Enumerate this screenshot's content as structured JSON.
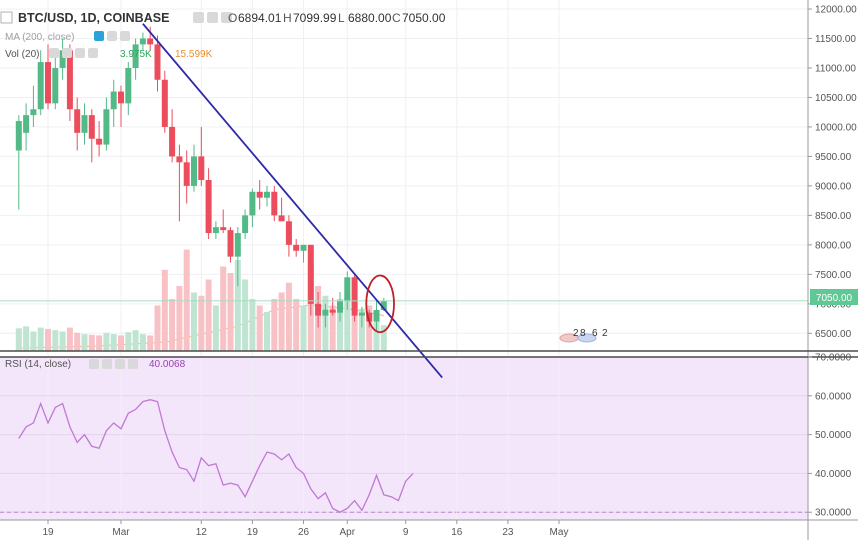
{
  "header": {
    "symbol": "BTC/USD, 1D, COINBASE",
    "o_label": "O",
    "o_value": "6894.01",
    "h_label": "H",
    "h_value": "7099.99",
    "l_label": "L",
    "l_value": "6880.00",
    "c_label": "C",
    "c_value": "7050.00"
  },
  "ma_label": "MA (200, close)",
  "vol_label": "Vol (20)",
  "vol_value1": "3.975K",
  "vol_value2": "15.599K",
  "rsi_label": "RSI (14, close)",
  "rsi_value": "40.0068",
  "price_tag": "7050.00",
  "event_digits": [
    "2",
    "8",
    "6",
    "2"
  ],
  "colors": {
    "up": "#53b987",
    "down": "#eb4d5c",
    "vol_up": "#bfe5d2",
    "vol_down": "#f7c1c6",
    "trendline": "#2f2aa8",
    "circle": "#c0202a",
    "rsi_bg": "#f3e6fb",
    "rsi_line": "#c178d4",
    "ma_line": "#f2c08a",
    "price_tag_bg": "#5fc895"
  },
  "chart_data": [
    {
      "type": "candlestick",
      "title": "BTC/USD, 1D, COINBASE",
      "ylim": [
        6200,
        12000
      ],
      "y_ticks": [
        "12000.00",
        "11500.00",
        "11000.00",
        "10500.00",
        "10000.00",
        "9500.00",
        "9000.00",
        "8500.00",
        "8000.00",
        "7500.00",
        "7000.00",
        "6500.00"
      ],
      "x_ticks": [
        {
          "label": "19",
          "day": 0
        },
        {
          "label": "Mar",
          "day": 10
        },
        {
          "label": "12",
          "day": 21
        },
        {
          "label": "19",
          "day": 28
        },
        {
          "label": "26",
          "day": 35
        },
        {
          "label": "Apr",
          "day": 41
        },
        {
          "label": "9",
          "day": 49
        },
        {
          "label": "16",
          "day": 56
        },
        {
          "label": "23",
          "day": 63
        },
        {
          "label": "May",
          "day": 70
        }
      ],
      "candles": [
        {
          "day": -4,
          "o": 9600,
          "h": 10200,
          "l": 8600,
          "c": 10100
        },
        {
          "day": -3,
          "o": 9900,
          "h": 10400,
          "l": 9600,
          "c": 10200
        },
        {
          "day": -2,
          "o": 10200,
          "h": 10700,
          "l": 10000,
          "c": 10300
        },
        {
          "day": -1,
          "o": 10300,
          "h": 11300,
          "l": 10200,
          "c": 11100
        },
        {
          "day": 0,
          "o": 11100,
          "h": 11400,
          "l": 10300,
          "c": 10400
        },
        {
          "day": 1,
          "o": 10400,
          "h": 11200,
          "l": 10300,
          "c": 11000
        },
        {
          "day": 2,
          "o": 11000,
          "h": 11500,
          "l": 10800,
          "c": 11300
        },
        {
          "day": 3,
          "o": 11300,
          "h": 11400,
          "l": 10100,
          "c": 10300
        },
        {
          "day": 4,
          "o": 10300,
          "h": 10500,
          "l": 9600,
          "c": 9900
        },
        {
          "day": 5,
          "o": 9900,
          "h": 10400,
          "l": 9700,
          "c": 10200
        },
        {
          "day": 6,
          "o": 10200,
          "h": 10300,
          "l": 9400,
          "c": 9800
        },
        {
          "day": 7,
          "o": 9800,
          "h": 10100,
          "l": 9500,
          "c": 9700
        },
        {
          "day": 8,
          "o": 9700,
          "h": 10500,
          "l": 9600,
          "c": 10300
        },
        {
          "day": 9,
          "o": 10300,
          "h": 10800,
          "l": 10000,
          "c": 10600
        },
        {
          "day": 10,
          "o": 10600,
          "h": 10700,
          "l": 10000,
          "c": 10400
        },
        {
          "day": 11,
          "o": 10400,
          "h": 11100,
          "l": 10200,
          "c": 11000
        },
        {
          "day": 12,
          "o": 11000,
          "h": 11500,
          "l": 10800,
          "c": 11400
        },
        {
          "day": 13,
          "o": 11400,
          "h": 11600,
          "l": 11300,
          "c": 11500
        },
        {
          "day": 14,
          "o": 11500,
          "h": 11700,
          "l": 11300,
          "c": 11400
        },
        {
          "day": 15,
          "o": 11400,
          "h": 11550,
          "l": 10600,
          "c": 10800
        },
        {
          "day": 16,
          "o": 10800,
          "h": 10950,
          "l": 9900,
          "c": 10000
        },
        {
          "day": 17,
          "o": 10000,
          "h": 10300,
          "l": 9400,
          "c": 9500
        },
        {
          "day": 18,
          "o": 9500,
          "h": 9700,
          "l": 8400,
          "c": 9400
        },
        {
          "day": 19,
          "o": 9400,
          "h": 9600,
          "l": 8700,
          "c": 9000
        },
        {
          "day": 20,
          "o": 9000,
          "h": 9700,
          "l": 8900,
          "c": 9500
        },
        {
          "day": 21,
          "o": 9500,
          "h": 10000,
          "l": 9000,
          "c": 9100
        },
        {
          "day": 22,
          "o": 9100,
          "h": 9300,
          "l": 8100,
          "c": 8200
        },
        {
          "day": 23,
          "o": 8200,
          "h": 8400,
          "l": 8100,
          "c": 8300
        },
        {
          "day": 24,
          "o": 8300,
          "h": 8600,
          "l": 8200,
          "c": 8250
        },
        {
          "day": 25,
          "o": 8250,
          "h": 8300,
          "l": 7700,
          "c": 7800
        },
        {
          "day": 26,
          "o": 7800,
          "h": 8300,
          "l": 7300,
          "c": 8200
        },
        {
          "day": 27,
          "o": 8200,
          "h": 8600,
          "l": 8100,
          "c": 8500
        },
        {
          "day": 28,
          "o": 8500,
          "h": 8950,
          "l": 8300,
          "c": 8900
        },
        {
          "day": 29,
          "o": 8900,
          "h": 9100,
          "l": 8600,
          "c": 8800
        },
        {
          "day": 30,
          "o": 8800,
          "h": 9000,
          "l": 8650,
          "c": 8900
        },
        {
          "day": 31,
          "o": 8900,
          "h": 9000,
          "l": 8400,
          "c": 8500
        },
        {
          "day": 32,
          "o": 8500,
          "h": 8800,
          "l": 8400,
          "c": 8400
        },
        {
          "day": 33,
          "o": 8400,
          "h": 8500,
          "l": 7800,
          "c": 8000
        },
        {
          "day": 34,
          "o": 8000,
          "h": 8100,
          "l": 7800,
          "c": 7900
        },
        {
          "day": 35,
          "o": 7900,
          "h": 8000,
          "l": 7700,
          "c": 8000
        },
        {
          "day": 36,
          "o": 8000,
          "h": 8000,
          "l": 6800,
          "c": 7000
        },
        {
          "day": 37,
          "o": 7000,
          "h": 7200,
          "l": 6600,
          "c": 6800
        },
        {
          "day": 38,
          "o": 6800,
          "h": 7000,
          "l": 6600,
          "c": 6900
        },
        {
          "day": 39,
          "o": 6900,
          "h": 7100,
          "l": 6800,
          "c": 6850
        },
        {
          "day": 40,
          "o": 6850,
          "h": 7200,
          "l": 6700,
          "c": 7050
        },
        {
          "day": 41,
          "o": 7050,
          "h": 7550,
          "l": 6900,
          "c": 7450
        },
        {
          "day": 42,
          "o": 7450,
          "h": 7500,
          "l": 6700,
          "c": 6800
        },
        {
          "day": 43,
          "o": 6800,
          "h": 6950,
          "l": 6600,
          "c": 6850
        },
        {
          "day": 44,
          "o": 6850,
          "h": 6900,
          "l": 6600,
          "c": 6700
        },
        {
          "day": 45,
          "o": 6700,
          "h": 7050,
          "l": 6550,
          "c": 6894.01
        },
        {
          "day": 46,
          "o": 6894.01,
          "h": 7099.99,
          "l": 6880,
          "c": 7050
        }
      ],
      "volume": [
        {
          "day": -4,
          "v": 3.5,
          "up": true
        },
        {
          "day": -3,
          "v": 3.8,
          "up": true
        },
        {
          "day": -2,
          "v": 3.0,
          "up": true
        },
        {
          "day": -1,
          "v": 3.6,
          "up": true
        },
        {
          "day": 0,
          "v": 3.4,
          "up": false
        },
        {
          "day": 1,
          "v": 3.2,
          "up": true
        },
        {
          "day": 2,
          "v": 3.0,
          "up": true
        },
        {
          "day": 3,
          "v": 3.6,
          "up": false
        },
        {
          "day": 4,
          "v": 2.8,
          "up": false
        },
        {
          "day": 5,
          "v": 2.6,
          "up": true
        },
        {
          "day": 6,
          "v": 2.5,
          "up": false
        },
        {
          "day": 7,
          "v": 2.4,
          "up": false
        },
        {
          "day": 8,
          "v": 2.8,
          "up": true
        },
        {
          "day": 9,
          "v": 2.6,
          "up": true
        },
        {
          "day": 10,
          "v": 2.4,
          "up": false
        },
        {
          "day": 11,
          "v": 2.9,
          "up": true
        },
        {
          "day": 12,
          "v": 3.2,
          "up": true
        },
        {
          "day": 13,
          "v": 2.6,
          "up": true
        },
        {
          "day": 14,
          "v": 2.4,
          "up": false
        },
        {
          "day": 15,
          "v": 7.0,
          "up": false
        },
        {
          "day": 16,
          "v": 12.5,
          "up": false
        },
        {
          "day": 17,
          "v": 8.0,
          "up": false
        },
        {
          "day": 18,
          "v": 10.0,
          "up": false
        },
        {
          "day": 19,
          "v": 15.599,
          "up": false
        },
        {
          "day": 20,
          "v": 9.0,
          "up": true
        },
        {
          "day": 21,
          "v": 8.5,
          "up": false
        },
        {
          "day": 22,
          "v": 11.0,
          "up": false
        },
        {
          "day": 23,
          "v": 7.0,
          "up": true
        },
        {
          "day": 24,
          "v": 13.0,
          "up": false
        },
        {
          "day": 25,
          "v": 12.0,
          "up": false
        },
        {
          "day": 26,
          "v": 14.0,
          "up": true
        },
        {
          "day": 27,
          "v": 11.0,
          "up": true
        },
        {
          "day": 28,
          "v": 8.0,
          "up": true
        },
        {
          "day": 29,
          "v": 7.0,
          "up": false
        },
        {
          "day": 30,
          "v": 6.0,
          "up": true
        },
        {
          "day": 31,
          "v": 8.0,
          "up": false
        },
        {
          "day": 32,
          "v": 9.0,
          "up": false
        },
        {
          "day": 33,
          "v": 10.5,
          "up": false
        },
        {
          "day": 34,
          "v": 8.0,
          "up": false
        },
        {
          "day": 35,
          "v": 7.0,
          "up": true
        },
        {
          "day": 36,
          "v": 13.5,
          "up": false
        },
        {
          "day": 37,
          "v": 10.0,
          "up": false
        },
        {
          "day": 38,
          "v": 8.5,
          "up": true
        },
        {
          "day": 39,
          "v": 7.0,
          "up": false
        },
        {
          "day": 40,
          "v": 8.0,
          "up": true
        },
        {
          "day": 41,
          "v": 9.0,
          "up": true
        },
        {
          "day": 42,
          "v": 8.0,
          "up": false
        },
        {
          "day": 43,
          "v": 6.5,
          "up": true
        },
        {
          "day": 44,
          "v": 7.0,
          "up": false
        },
        {
          "day": 45,
          "v": 5.0,
          "up": true
        },
        {
          "day": 46,
          "v": 3.975,
          "up": true
        }
      ],
      "vol_max": 20,
      "ma_200": [
        {
          "day": -4,
          "v": 6250
        },
        {
          "day": 6,
          "v": 6280
        },
        {
          "day": 16,
          "v": 6350
        },
        {
          "day": 26,
          "v": 6620
        },
        {
          "day": 31,
          "v": 6900
        },
        {
          "day": 36,
          "v": 6980
        },
        {
          "day": 41,
          "v": 6920
        },
        {
          "day": 46,
          "v": 6800
        }
      ],
      "trendline": {
        "start": {
          "day": 13,
          "v": 11750
        },
        "end": {
          "day": 54,
          "v": 5750
        }
      },
      "highlight_circle": {
        "day": 45.5,
        "v": 7000,
        "r_days": 1.9,
        "r_value": 480
      }
    },
    {
      "type": "line",
      "title": "RSI (14, close)",
      "ylim": [
        28,
        70
      ],
      "y_ticks": [
        "70.0000",
        "60.0000",
        "50.0000",
        "40.0000",
        "30.0000"
      ],
      "bands": [
        30,
        70
      ],
      "points": [
        {
          "day": -4,
          "v": 49
        },
        {
          "day": -3,
          "v": 52
        },
        {
          "day": -2,
          "v": 53
        },
        {
          "day": -1,
          "v": 58
        },
        {
          "day": 0,
          "v": 53
        },
        {
          "day": 1,
          "v": 57
        },
        {
          "day": 2,
          "v": 58
        },
        {
          "day": 3,
          "v": 52
        },
        {
          "day": 4,
          "v": 48
        },
        {
          "day": 5,
          "v": 50
        },
        {
          "day": 6,
          "v": 47
        },
        {
          "day": 7,
          "v": 46.5
        },
        {
          "day": 8,
          "v": 51
        },
        {
          "day": 9,
          "v": 53
        },
        {
          "day": 10,
          "v": 51.5
        },
        {
          "day": 11,
          "v": 55.5
        },
        {
          "day": 12,
          "v": 56.5
        },
        {
          "day": 13,
          "v": 58.5
        },
        {
          "day": 14,
          "v": 59
        },
        {
          "day": 15,
          "v": 58.5
        },
        {
          "day": 16,
          "v": 51
        },
        {
          "day": 17,
          "v": 45.5
        },
        {
          "day": 18,
          "v": 41.5
        },
        {
          "day": 19,
          "v": 41
        },
        {
          "day": 20,
          "v": 38
        },
        {
          "day": 21,
          "v": 44
        },
        {
          "day": 22,
          "v": 42
        },
        {
          "day": 23,
          "v": 42.5
        },
        {
          "day": 24,
          "v": 37
        },
        {
          "day": 25,
          "v": 37.5
        },
        {
          "day": 26,
          "v": 37
        },
        {
          "day": 27,
          "v": 34
        },
        {
          "day": 28,
          "v": 38
        },
        {
          "day": 29,
          "v": 42
        },
        {
          "day": 30,
          "v": 45.5
        },
        {
          "day": 31,
          "v": 45
        },
        {
          "day": 32,
          "v": 43.5
        },
        {
          "day": 33,
          "v": 45
        },
        {
          "day": 34,
          "v": 41.5
        },
        {
          "day": 35,
          "v": 40
        },
        {
          "day": 36,
          "v": 36
        },
        {
          "day": 37,
          "v": 33.5
        },
        {
          "day": 38,
          "v": 35
        },
        {
          "day": 39,
          "v": 31
        },
        {
          "day": 40,
          "v": 30
        },
        {
          "day": 41,
          "v": 31
        },
        {
          "day": 42,
          "v": 33
        },
        {
          "day": 43,
          "v": 30.5
        },
        {
          "day": 44,
          "v": 34.5
        },
        {
          "day": 45,
          "v": 39.5
        },
        {
          "day": 46,
          "v": 34.5
        },
        {
          "day": 47,
          "v": 34
        },
        {
          "day": 48,
          "v": 33
        },
        {
          "day": 49,
          "v": 38
        },
        {
          "day": 50,
          "v": 40
        }
      ]
    }
  ]
}
